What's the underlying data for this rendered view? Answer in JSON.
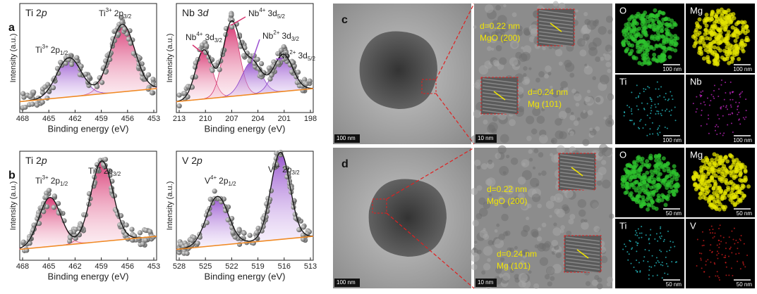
{
  "xps": [
    {
      "panel": "a",
      "title": [
        "Ti 2",
        "p"
      ],
      "xticks": [
        "468",
        "465",
        "462",
        "459",
        "456",
        "453"
      ],
      "xlabel": "Binding energy (eV)",
      "ylabel": "Intensity (a.u.)",
      "peaks": [
        {
          "ion": "Ti",
          "charge": "3+",
          "level": "2p",
          "sub": "3/2"
        },
        {
          "ion": "Ti",
          "charge": "3+",
          "level": "2p",
          "sub": "1/2"
        }
      ]
    },
    {
      "title": [
        "Nb 3",
        "d"
      ],
      "xticks": [
        "213",
        "210",
        "207",
        "204",
        "201",
        "198"
      ],
      "xlabel": "Binding energy (eV)",
      "ylabel": "Intensity (a.u.)",
      "peaks": [
        {
          "ion": "Nb",
          "charge": "4+",
          "level": "3d",
          "sub": "3/2"
        },
        {
          "ion": "Nb",
          "charge": "4+",
          "level": "3d",
          "sub": "5/2"
        },
        {
          "ion": "Nb",
          "charge": "2+",
          "level": "3d",
          "sub": "3/2"
        },
        {
          "ion": "Nb",
          "charge": "2+",
          "level": "3d",
          "sub": "5/2"
        }
      ]
    },
    {
      "panel": "b",
      "title": [
        "Ti 2",
        "p"
      ],
      "xticks": [
        "468",
        "465",
        "462",
        "459",
        "456",
        "453"
      ],
      "xlabel": "Binding energy (eV)",
      "ylabel": "Intensity (a.u.)",
      "peaks": [
        {
          "ion": "Ti",
          "charge": "3+",
          "level": "2p",
          "sub": "1/2"
        },
        {
          "ion": "Ti",
          "charge": "3+",
          "level": "2p",
          "sub": "3/2"
        }
      ]
    },
    {
      "title": [
        "V 2",
        "p"
      ],
      "xticks": [
        "528",
        "525",
        "522",
        "519",
        "516",
        "513"
      ],
      "xlabel": "Binding energy (eV)",
      "ylabel": "Intensity (a.u.)",
      "peaks": [
        {
          "ion": "V",
          "charge": "4+",
          "level": "2p",
          "sub": "1/2"
        },
        {
          "ion": "V",
          "charge": "4+",
          "level": "2p",
          "sub": "3/2"
        }
      ]
    }
  ],
  "tem": [
    {
      "panel": "c",
      "overview_scale": "100 nm",
      "hrtem_scale": "10 nm",
      "spacings": [
        {
          "d": "d=0.22 nm",
          "plane": "MgO (200)"
        },
        {
          "d": "d=0.24 nm",
          "plane": "Mg (101)"
        }
      ],
      "maps": [
        {
          "element": "O",
          "scale": "100 nm"
        },
        {
          "element": "Mg",
          "scale": "100 nm"
        },
        {
          "element": "Ti",
          "scale": "100 nm"
        },
        {
          "element": "Nb",
          "scale": "100 nm"
        }
      ]
    },
    {
      "panel": "d",
      "overview_scale": "100 nm",
      "hrtem_scale": "10 nm",
      "spacings": [
        {
          "d": "d=0.22 nm",
          "plane": "MgO (200)"
        },
        {
          "d": "d=0.24 nm",
          "plane": "Mg (101)"
        }
      ],
      "maps": [
        {
          "element": "O",
          "scale": "50 nm"
        },
        {
          "element": "Mg",
          "scale": "50 nm"
        },
        {
          "element": "Ti",
          "scale": "50 nm"
        },
        {
          "element": "V",
          "scale": "50 nm"
        }
      ]
    }
  ]
}
